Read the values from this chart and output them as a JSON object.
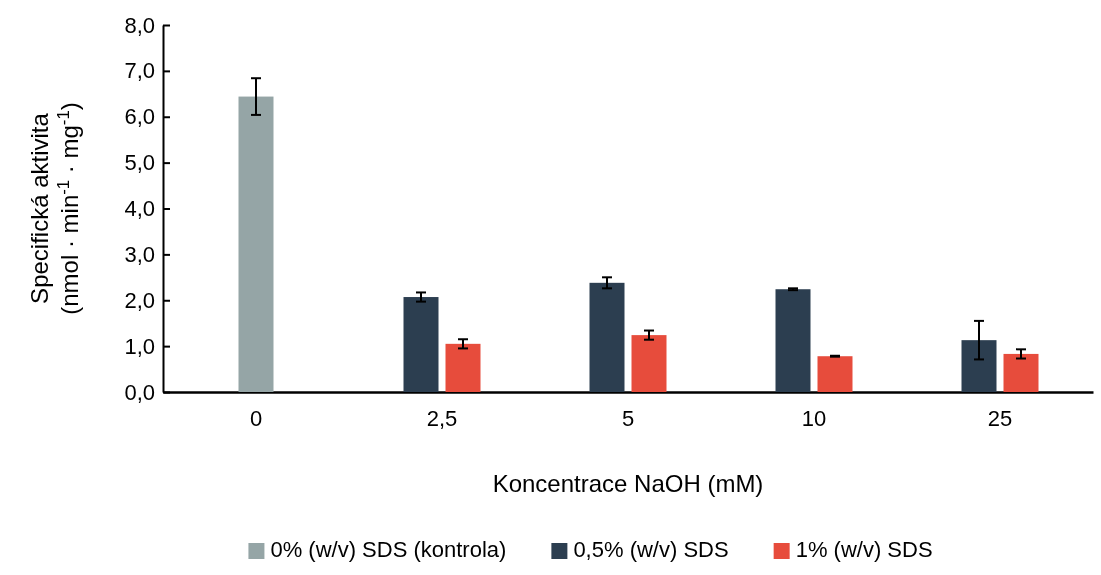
{
  "chart_data": {
    "type": "bar",
    "xlabel": "Koncentrace NaOH (mM)",
    "ylabel": "Specifická aktivita\n(nmol · min$^{-1}$ · mg$^{-1}$)",
    "categories": [
      "0",
      "2,5",
      "5",
      "10",
      "25"
    ],
    "series": [
      {
        "name": "0% (w/v) SDS (kontrola)",
        "color": "#95a5a6",
        "values": [
          6.44,
          null,
          null,
          null,
          null
        ],
        "errors": [
          0.4,
          null,
          null,
          null,
          null
        ]
      },
      {
        "name": "0,5% (w/v) SDS",
        "color": "#2c3e50",
        "values": [
          null,
          2.07,
          2.38,
          2.24,
          1.13
        ],
        "errors": [
          null,
          0.1,
          0.12,
          0.02,
          0.42
        ]
      },
      {
        "name": "1% (w/v) SDS",
        "color": "#e74c3c",
        "values": [
          null,
          1.05,
          1.24,
          0.78,
          0.83
        ],
        "errors": [
          null,
          0.1,
          0.1,
          0.01,
          0.1
        ]
      }
    ],
    "ylim": [
      0,
      8
    ],
    "yticks": [
      {
        "value": 0,
        "label": "0,0"
      },
      {
        "value": 1,
        "label": "1,0"
      },
      {
        "value": 2,
        "label": "2,0"
      },
      {
        "value": 3,
        "label": "3,0"
      },
      {
        "value": 4,
        "label": "4,0"
      },
      {
        "value": 5,
        "label": "5,0"
      },
      {
        "value": 6,
        "label": "6,0"
      },
      {
        "value": 7,
        "label": "7,0"
      },
      {
        "value": 8,
        "label": "8,0"
      }
    ],
    "grid": false,
    "legend": "bottom"
  }
}
